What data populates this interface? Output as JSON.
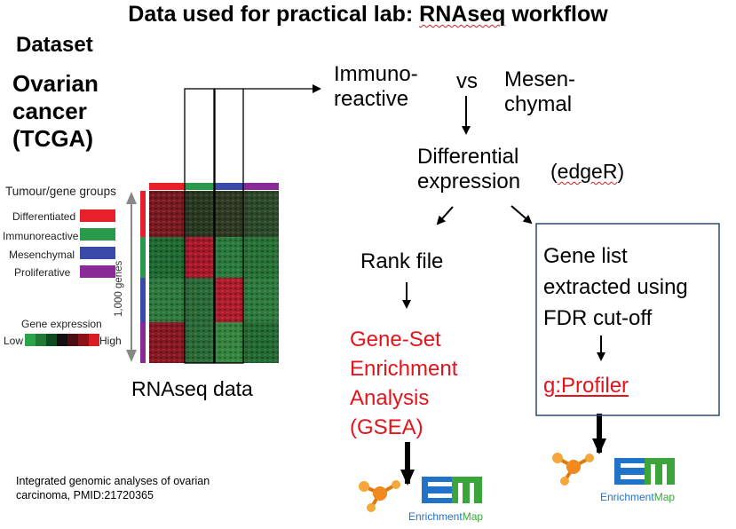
{
  "title": {
    "prefix": "Data used for practical lab: ",
    "keyword": "RNAseq",
    "suffix": " workflow"
  },
  "dataset": {
    "label": "Dataset",
    "name_lines": [
      "Ovarian",
      "cancer",
      "(TCGA)"
    ]
  },
  "heatmap": {
    "groups_title": "Tumour/gene groups",
    "groups": [
      {
        "label": "Differentiated",
        "color": "#e8202a"
      },
      {
        "label": "Immunoreactive",
        "color": "#2a9a4a"
      },
      {
        "label": "Mesenchymal",
        "color": "#3a4aa8"
      },
      {
        "label": "Proliferative",
        "color": "#8a2a98"
      }
    ],
    "genes_label": "1,000 genes",
    "expr_title": "Gene expression",
    "expr_low": "Low",
    "expr_high": "High",
    "caption": "RNAseq data"
  },
  "comparison": {
    "left_lines": [
      "Immuno-",
      "reactive"
    ],
    "vs": "vs",
    "right_lines": [
      "Mesen-",
      "chymal"
    ]
  },
  "differential": {
    "lines": [
      "Differential",
      "expression"
    ],
    "tool_prefix": "(",
    "tool": "edgeR",
    "tool_suffix": ")"
  },
  "rank_file": "Rank file",
  "gsea_lines": [
    "Gene-Set",
    "Enrichment",
    "Analysis",
    "(GSEA)"
  ],
  "gene_list_lines": [
    "Gene list",
    "extracted using",
    "FDR cut-off"
  ],
  "gprofiler": "g:Profiler",
  "enrichment_map": {
    "brand_prefix": "Enrichment",
    "brand_suffix": "Map",
    "logo_letters": "EM"
  },
  "citation_lines": [
    "Integrated genomic analyses of ovarian",
    "carcinoma, PMID:21720365"
  ],
  "colors": {
    "accent_red": "#e2141c",
    "box_border": "#2c4a7a",
    "em_blue": "#1f73c8",
    "em_green": "#3ba53b",
    "cytoscape_orange": "#f08a1e"
  }
}
